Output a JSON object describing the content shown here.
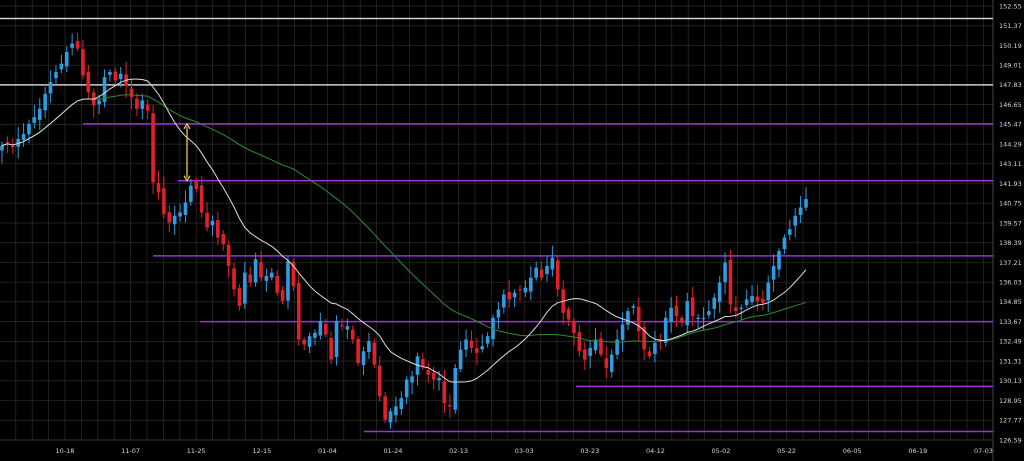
{
  "chart_data": {
    "type": "candlestick",
    "title": "",
    "xlabel": "",
    "ylabel": "",
    "ylim": [
      126.59,
      152.55
    ],
    "y_ticks": [
      "152.55",
      "151.37",
      "150.19",
      "149.01",
      "147.83",
      "146.65",
      "145.47",
      "144.29",
      "143.11",
      "141.93",
      "140.75",
      "139.57",
      "138.39",
      "137.21",
      "136.03",
      "134.85",
      "133.67",
      "132.49",
      "131.31",
      "130.13",
      "128.95",
      "127.77",
      "126.59"
    ],
    "x_ticks": [
      "10-18",
      "11-07",
      "11-25",
      "12-15",
      "01-04",
      "01-24",
      "02-13",
      "03-03",
      "03-23",
      "04-12",
      "05-02",
      "05-22",
      "06-05",
      "06-19",
      "07-03"
    ],
    "grid": true,
    "colors": {
      "background": "#000000",
      "grid": "#2e2e2e",
      "up_candle": "#2f9be0",
      "down_candle": "#e0212a",
      "fast_ma": "#dcdcdc",
      "slow_ma": "#2e8b2e",
      "purple_level": "#9b30e0",
      "white_level": "#cfcfcf",
      "arrow": "#e6c84a"
    },
    "horizontal_levels": [
      {
        "price": 151.8,
        "color": "white",
        "start": "start"
      },
      {
        "price": 147.83,
        "color": "white",
        "start": "start"
      },
      {
        "price": 145.5,
        "color": "purple",
        "start": "10-18"
      },
      {
        "price": 142.1,
        "color": "purple",
        "start": "11-25"
      },
      {
        "price": 137.6,
        "color": "purple",
        "start": "11-07"
      },
      {
        "price": 133.67,
        "color": "purple",
        "start": "12-15"
      },
      {
        "price": 129.8,
        "color": "purple",
        "start": "03-23"
      },
      {
        "price": 127.1,
        "color": "purple",
        "start": "01-24"
      }
    ],
    "arrow_range": [
      145.5,
      142.1
    ],
    "candles_close": [
      144.2,
      144.4,
      144.1,
      144.6,
      144.9,
      145.5,
      145.9,
      146.4,
      147.3,
      148.0,
      148.6,
      149.1,
      149.8,
      150.3,
      150.0,
      148.4,
      147.4,
      146.6,
      146.9,
      148.3,
      148.6,
      148.1,
      148.5,
      147.8,
      147.1,
      146.4,
      146.9,
      146.3,
      142.0,
      141.4,
      140.1,
      139.6,
      140.0,
      140.2,
      140.8,
      141.8,
      141.6,
      140.2,
      139.3,
      139.7,
      138.7,
      138.3,
      137.0,
      135.6,
      134.6,
      136.6,
      136.0,
      137.4,
      136.3,
      136.4,
      136.6,
      135.4,
      134.9,
      137.3,
      135.8,
      132.6,
      132.3,
      132.8,
      133.0,
      133.7,
      132.9,
      131.4,
      133.7,
      133.4,
      133.4,
      132.6,
      131.2,
      131.9,
      132.5,
      131.1,
      129.2,
      127.8,
      128.3,
      128.6,
      129.1,
      130.2,
      130.4,
      131.6,
      131.0,
      130.5,
      130.2,
      130.3,
      128.8,
      128.6,
      130.9,
      132.0,
      132.6,
      132.1,
      131.8,
      132.2,
      132.8,
      133.9,
      134.4,
      135.3,
      135.0,
      135.4,
      135.6,
      135.7,
      136.3,
      136.9,
      136.3,
      137.0,
      137.5,
      135.6,
      134.2,
      133.8,
      133.0,
      131.9,
      131.4,
      132.1,
      132.6,
      131.7,
      130.9,
      131.7,
      132.6,
      133.5,
      134.3,
      134.6,
      133.1,
      132.0,
      131.6,
      132.4,
      132.6,
      133.9,
      134.5,
      134.0,
      133.6,
      134.9,
      134.0,
      133.9,
      133.9,
      134.3,
      135.1,
      136.0,
      137.2,
      134.7,
      134.3,
      134.5,
      135.0,
      135.2,
      134.9,
      134.8,
      136.0,
      137.0,
      137.9,
      138.7,
      139.2,
      140.0,
      140.5,
      141.0
    ],
    "fast_ma_endpoints": [
      144.0,
      137.0
    ],
    "slow_ma_endpoints": [
      137.0,
      134.0
    ]
  }
}
